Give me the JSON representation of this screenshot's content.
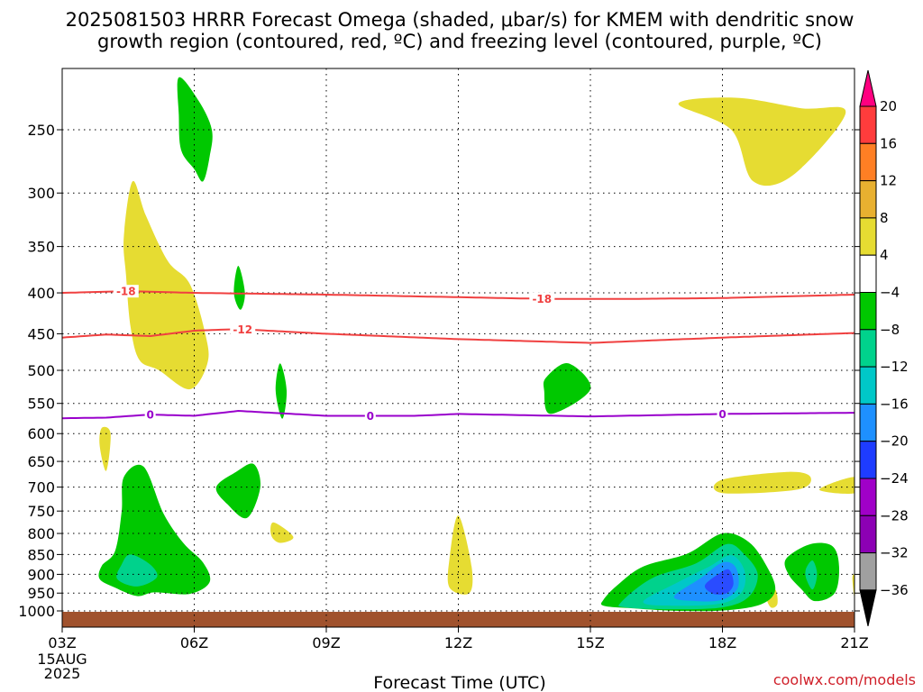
{
  "chart_data": {
    "type": "contour",
    "title_lines": [
      "2025081503 HRRR Forecast Omega (shaded, μbar/s) for KMEM with dendritic snow",
      "growth region (contoured, red, ºC) and freezing level (contoured, purple, ºC)"
    ],
    "xlabel": "Forecast Time (UTC)",
    "credit": "coolwx.com/models",
    "x_ticks": [
      {
        "hour": 0,
        "label": "03Z",
        "sub": [
          "15AUG",
          "2025"
        ]
      },
      {
        "hour": 3,
        "label": "06Z"
      },
      {
        "hour": 6,
        "label": "09Z"
      },
      {
        "hour": 9,
        "label": "12Z"
      },
      {
        "hour": 12,
        "label": "15Z"
      },
      {
        "hour": 15,
        "label": "18Z"
      },
      {
        "hour": 18,
        "label": "21Z"
      }
    ],
    "xlim": [
      0,
      18
    ],
    "y_ticks": [
      250,
      300,
      350,
      400,
      450,
      500,
      550,
      600,
      650,
      700,
      750,
      800,
      850,
      900,
      950,
      1000
    ],
    "ylim_hPa": [
      200,
      1030
    ],
    "y_scale": "log",
    "colorbar": {
      "levels": [
        "20",
        "16",
        "12",
        "8",
        "4",
        "−4",
        "−8",
        "−12",
        "−16",
        "−20",
        "−24",
        "−28",
        "−32",
        "−36"
      ],
      "colors": [
        "#ff0080",
        "#ff3c3c",
        "#ff7f24",
        "#e8b030",
        "#e6dc32",
        "#ffffff",
        "#00c800",
        "#00d28c",
        "#00c8c8",
        "#1e90ff",
        "#1e3cff",
        "#a000c8",
        "#8c00b4",
        "#a0a0a0",
        "#000000"
      ]
    },
    "contours": [
      {
        "name": "dgz_-18",
        "value": "-18",
        "color": "#f04040",
        "points": [
          [
            0,
            400
          ],
          [
            1.5,
            398
          ],
          [
            3,
            400
          ],
          [
            6,
            402
          ],
          [
            9,
            405
          ],
          [
            11,
            407
          ],
          [
            13,
            407
          ],
          [
            15,
            406
          ],
          [
            18,
            402
          ]
        ],
        "labels": [
          {
            "x": 1.45,
            "text": "-18"
          },
          {
            "x": 10.9,
            "text": "-18"
          }
        ]
      },
      {
        "name": "dgz_-12",
        "value": "-12",
        "color": "#f04040",
        "points": [
          [
            0,
            455
          ],
          [
            1,
            451
          ],
          [
            2,
            453
          ],
          [
            3,
            446
          ],
          [
            4,
            444
          ],
          [
            6,
            450
          ],
          [
            9,
            457
          ],
          [
            12,
            462
          ],
          [
            15,
            455
          ],
          [
            18,
            449
          ]
        ],
        "labels": [
          {
            "x": 4.1,
            "text": "-12"
          }
        ]
      },
      {
        "name": "freezing_level",
        "value": "0",
        "color": "#9900cc",
        "points": [
          [
            0,
            574
          ],
          [
            1,
            573
          ],
          [
            2,
            568
          ],
          [
            3,
            570
          ],
          [
            4,
            562
          ],
          [
            6,
            570
          ],
          [
            8,
            570
          ],
          [
            9,
            567
          ],
          [
            12,
            571
          ],
          [
            15,
            567
          ],
          [
            18,
            565
          ]
        ],
        "labels": [
          {
            "x": 2.0,
            "text": "0"
          },
          {
            "x": 7.0,
            "text": "0"
          },
          {
            "x": 15.0,
            "text": "0"
          }
        ]
      }
    ],
    "omega_regions": [
      {
        "name": "pos-4-8",
        "level": "4 to 8",
        "color": "#e6dc32",
        "points": [
          [
            1.6,
            290
          ],
          [
            1.9,
            320
          ],
          [
            2.4,
            365
          ],
          [
            2.9,
            390
          ],
          [
            3.25,
            450
          ],
          [
            3.3,
            490
          ],
          [
            2.9,
            528
          ],
          [
            2.2,
            500
          ],
          [
            1.75,
            485
          ],
          [
            1.55,
            440
          ],
          [
            1.45,
            380
          ],
          [
            1.4,
            340
          ]
        ]
      },
      {
        "name": "pos-4-8",
        "level": "4 to 8",
        "color": "#e6dc32",
        "points": [
          [
            0.9,
            590
          ],
          [
            1.1,
            600
          ],
          [
            1.0,
            668
          ],
          [
            0.85,
            620
          ]
        ]
      },
      {
        "name": "pos-4-8",
        "level": "4 to 8",
        "color": "#e6dc32",
        "points": [
          [
            4.8,
            775
          ],
          [
            5.25,
            808
          ],
          [
            4.95,
            822
          ],
          [
            4.75,
            805
          ]
        ]
      },
      {
        "name": "pos-4-8",
        "level": "4 to 8",
        "color": "#e6dc32",
        "points": [
          [
            9.0,
            760
          ],
          [
            9.3,
            880
          ],
          [
            9.25,
            950
          ],
          [
            8.8,
            935
          ],
          [
            8.8,
            860
          ]
        ]
      },
      {
        "name": "pos-4-8",
        "level": "4 to 8",
        "color": "#e6dc32",
        "points": [
          [
            14.0,
            232
          ],
          [
            15.3,
            228
          ],
          [
            16.8,
            235
          ],
          [
            17.8,
            238
          ],
          [
            16.6,
            285
          ],
          [
            15.7,
            290
          ],
          [
            15.2,
            250
          ]
        ]
      },
      {
        "name": "pos-4-8",
        "level": "4 to 8",
        "color": "#e6dc32",
        "points": [
          [
            15.0,
            685
          ],
          [
            16.5,
            670
          ],
          [
            17.0,
            680
          ],
          [
            16.7,
            705
          ],
          [
            15.0,
            712
          ]
        ]
      },
      {
        "name": "pos-4-8",
        "level": "4 to 8",
        "color": "#e6dc32",
        "points": [
          [
            17.2,
            705
          ],
          [
            18.0,
            680
          ],
          [
            18.0,
            712
          ]
        ]
      },
      {
        "name": "pos-4-8",
        "level": "4 to 8",
        "color": "#e6dc32",
        "points": [
          [
            16.0,
            958
          ],
          [
            16.2,
            940
          ],
          [
            16.25,
            980
          ],
          [
            16.1,
            990
          ]
        ]
      },
      {
        "name": "pos-4-8",
        "level": "4 to 8",
        "color": "#e6dc32",
        "points": [
          [
            17.95,
            910
          ],
          [
            18.0,
            905
          ],
          [
            18.0,
            965
          ]
        ]
      },
      {
        "name": "neg-4-8",
        "level": "-4 to -8",
        "color": "#00c800",
        "points": [
          [
            2.65,
            215
          ],
          [
            3.1,
            230
          ],
          [
            3.4,
            250
          ],
          [
            3.35,
            270
          ],
          [
            3.2,
            290
          ],
          [
            3.0,
            280
          ],
          [
            2.7,
            265
          ],
          [
            2.65,
            240
          ]
        ]
      },
      {
        "name": "neg-4-8",
        "level": "-4 to -8",
        "color": "#00c800",
        "points": [
          [
            4.0,
            370
          ],
          [
            4.15,
            400
          ],
          [
            4.05,
            420
          ],
          [
            3.9,
            400
          ]
        ]
      },
      {
        "name": "neg-4-8",
        "level": "-4 to -8",
        "color": "#00c800",
        "points": [
          [
            4.95,
            490
          ],
          [
            5.1,
            530
          ],
          [
            5.0,
            575
          ],
          [
            4.85,
            530
          ]
        ]
      },
      {
        "name": "neg-4-8",
        "level": "-4 to -8",
        "color": "#00c800",
        "points": [
          [
            3.5,
            700
          ],
          [
            3.95,
            670
          ],
          [
            4.35,
            655
          ],
          [
            4.5,
            700
          ],
          [
            4.2,
            765
          ],
          [
            3.75,
            735
          ]
        ]
      },
      {
        "name": "neg-4-8",
        "level": "-4 to -8",
        "color": "#00c800",
        "points": [
          [
            11.0,
            510
          ],
          [
            11.5,
            490
          ],
          [
            12.0,
            528
          ],
          [
            11.1,
            567
          ],
          [
            10.95,
            530
          ]
        ]
      },
      {
        "name": "neg-4-8",
        "level": "-4 to -8",
        "color": "#00c800",
        "points": [
          [
            1.4,
            680
          ],
          [
            1.85,
            660
          ],
          [
            2.3,
            755
          ],
          [
            2.75,
            822
          ],
          [
            3.2,
            870
          ],
          [
            3.35,
            920
          ],
          [
            2.9,
            952
          ],
          [
            2.1,
            948
          ],
          [
            1.7,
            958
          ],
          [
            1.2,
            935
          ],
          [
            0.85,
            912
          ],
          [
            0.9,
            878
          ],
          [
            1.2,
            842
          ],
          [
            1.35,
            752
          ]
        ]
      },
      {
        "name": "neg-4-8",
        "level": "-4 to -8",
        "color": "#00c800",
        "points": [
          [
            12.3,
            968
          ],
          [
            12.6,
            930
          ],
          [
            13.2,
            880
          ],
          [
            14.2,
            848
          ],
          [
            15.0,
            800
          ],
          [
            15.6,
            820
          ],
          [
            16.0,
            878
          ],
          [
            16.2,
            940
          ],
          [
            15.9,
            980
          ],
          [
            15.1,
            998
          ],
          [
            14.0,
            1000
          ],
          [
            12.9,
            992
          ],
          [
            12.3,
            985
          ]
        ]
      },
      {
        "name": "neg-4-8",
        "level": "-4 to -8",
        "color": "#00c800",
        "points": [
          [
            16.45,
            860
          ],
          [
            17.0,
            825
          ],
          [
            17.5,
            830
          ],
          [
            17.65,
            880
          ],
          [
            17.55,
            950
          ],
          [
            17.1,
            972
          ],
          [
            16.8,
            940
          ],
          [
            16.5,
            900
          ]
        ]
      },
      {
        "name": "neg-8-12",
        "level": "-8 to -12",
        "color": "#00d28c",
        "points": [
          [
            1.55,
            850
          ],
          [
            2.0,
            875
          ],
          [
            2.15,
            908
          ],
          [
            1.7,
            932
          ],
          [
            1.25,
            912
          ],
          [
            1.35,
            875
          ]
        ]
      },
      {
        "name": "neg-8-12",
        "level": "-8 to -12",
        "color": "#00d28c",
        "points": [
          [
            12.7,
            975
          ],
          [
            13.4,
            910
          ],
          [
            14.4,
            872
          ],
          [
            15.1,
            825
          ],
          [
            15.5,
            850
          ],
          [
            15.8,
            900
          ],
          [
            15.6,
            960
          ],
          [
            15.0,
            990
          ],
          [
            13.8,
            995
          ],
          [
            12.8,
            990
          ]
        ]
      },
      {
        "name": "neg-8-12",
        "level": "-8 to -12",
        "color": "#00d28c",
        "points": [
          [
            16.9,
            885
          ],
          [
            17.05,
            865
          ],
          [
            17.15,
            900
          ],
          [
            17.05,
            940
          ],
          [
            16.9,
            910
          ]
        ]
      },
      {
        "name": "neg-12-16",
        "level": "-12 to -16",
        "color": "#00c8c8",
        "points": [
          [
            13.2,
            975
          ],
          [
            14.0,
            920
          ],
          [
            14.7,
            880
          ],
          [
            15.2,
            852
          ],
          [
            15.5,
            890
          ],
          [
            15.45,
            945
          ],
          [
            15.0,
            978
          ],
          [
            14.0,
            985
          ]
        ]
      },
      {
        "name": "neg-16-20",
        "level": "-16 to -20",
        "color": "#1e90ff",
        "points": [
          [
            13.9,
            960
          ],
          [
            14.5,
            910
          ],
          [
            15.0,
            870
          ],
          [
            15.3,
            882
          ],
          [
            15.35,
            935
          ],
          [
            15.0,
            968
          ],
          [
            14.4,
            972
          ]
        ]
      },
      {
        "name": "neg-20-24",
        "level": "-20 to -24",
        "color": "#2a4cff",
        "points": [
          [
            14.6,
            930
          ],
          [
            14.9,
            900
          ],
          [
            15.15,
            888
          ],
          [
            15.25,
            925
          ],
          [
            15.1,
            950
          ],
          [
            14.8,
            952
          ]
        ]
      }
    ]
  }
}
